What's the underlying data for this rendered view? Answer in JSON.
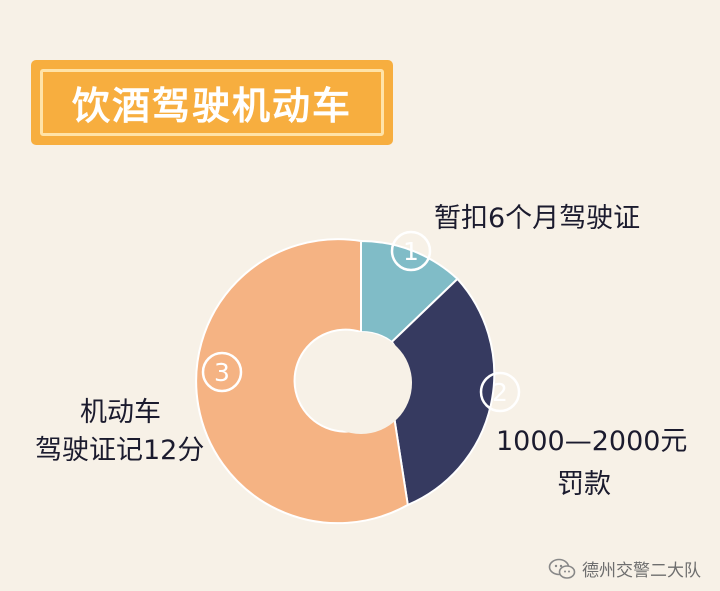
{
  "title": "饮酒驾驶机动车",
  "segments": [
    {
      "number": "1",
      "label_lines": [
        "暂扣6个月驾驶证"
      ],
      "color": "#80bcc7"
    },
    {
      "number": "2",
      "label_lines": [
        "1000—2000元",
        "罚款"
      ],
      "color": "#363a60"
    },
    {
      "number": "3",
      "label_lines": [
        "机动车",
        "驾驶证记12分"
      ],
      "color": "#f5b383"
    }
  ],
  "watermark": "德州交警二大队",
  "colors": {
    "background": "#f7f1e7",
    "title_box": "#f7ae3f",
    "title_inner_border": "#ffe3a8"
  }
}
